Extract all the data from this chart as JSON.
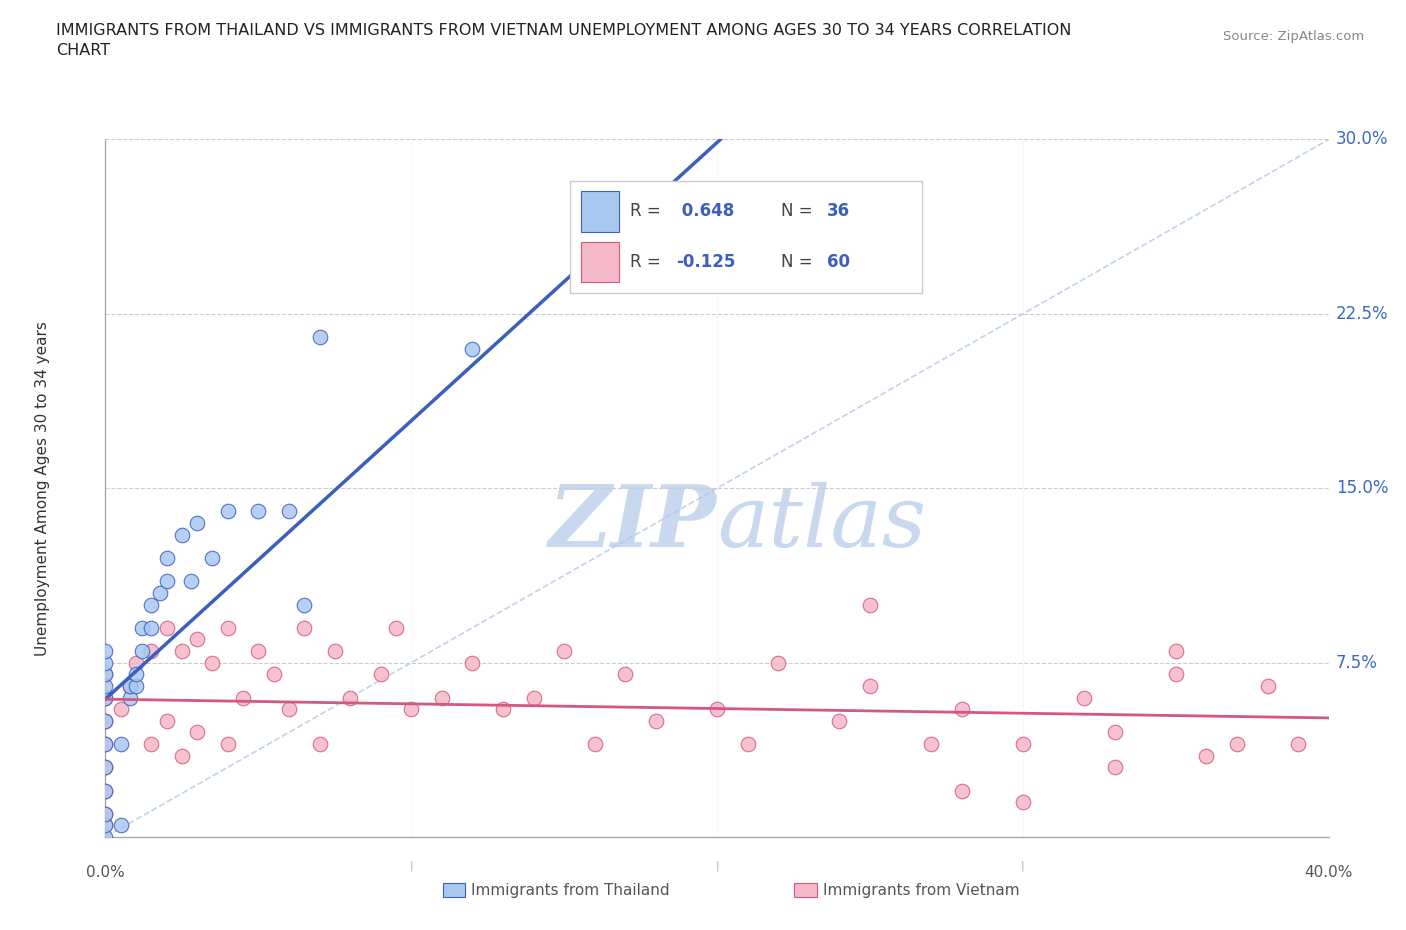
{
  "title": "IMMIGRANTS FROM THAILAND VS IMMIGRANTS FROM VIETNAM UNEMPLOYMENT AMONG AGES 30 TO 34 YEARS CORRELATION\nCHART",
  "source": "Source: ZipAtlas.com",
  "ylabel": "Unemployment Among Ages 30 to 34 years",
  "xlim": [
    0.0,
    0.4
  ],
  "ylim": [
    0.0,
    0.3
  ],
  "ytick_vals": [
    0.0,
    0.075,
    0.15,
    0.225,
    0.3
  ],
  "xtick_vals": [
    0.0,
    0.1,
    0.2,
    0.3,
    0.4
  ],
  "yticklabels_right": [
    "",
    "7.5%",
    "15.0%",
    "22.5%",
    "30.0%"
  ],
  "watermark": "ZIPatlas",
  "color_thailand": "#a8c8f0",
  "color_vietnam": "#f5b8c8",
  "color_trendline_thailand": "#3a5fbf",
  "color_trendline_vietnam": "#d45880",
  "color_diag": "#b0c8e8",
  "thailand_x": [
    0.0,
    0.0,
    0.0,
    0.0,
    0.0,
    0.0,
    0.0,
    0.0,
    0.0,
    0.0,
    0.0,
    0.0,
    0.005,
    0.005,
    0.008,
    0.008,
    0.01,
    0.01,
    0.012,
    0.012,
    0.015,
    0.015,
    0.018,
    0.02,
    0.02,
    0.025,
    0.028,
    0.03,
    0.035,
    0.04,
    0.05,
    0.06,
    0.065,
    0.07,
    0.12,
    0.22
  ],
  "thailand_y": [
    0.0,
    0.005,
    0.01,
    0.02,
    0.03,
    0.04,
    0.05,
    0.06,
    0.065,
    0.07,
    0.075,
    0.08,
    0.005,
    0.04,
    0.06,
    0.065,
    0.065,
    0.07,
    0.08,
    0.09,
    0.09,
    0.1,
    0.105,
    0.11,
    0.12,
    0.13,
    0.11,
    0.135,
    0.12,
    0.14,
    0.14,
    0.14,
    0.1,
    0.215,
    0.21,
    0.27
  ],
  "vietnam_x": [
    0.0,
    0.0,
    0.0,
    0.0,
    0.0,
    0.0,
    0.0,
    0.0,
    0.005,
    0.008,
    0.01,
    0.015,
    0.015,
    0.02,
    0.02,
    0.025,
    0.025,
    0.03,
    0.03,
    0.035,
    0.04,
    0.04,
    0.045,
    0.05,
    0.055,
    0.06,
    0.065,
    0.07,
    0.075,
    0.08,
    0.09,
    0.095,
    0.1,
    0.11,
    0.12,
    0.13,
    0.14,
    0.15,
    0.16,
    0.17,
    0.18,
    0.2,
    0.21,
    0.22,
    0.24,
    0.25,
    0.27,
    0.28,
    0.3,
    0.32,
    0.33,
    0.35,
    0.36,
    0.37,
    0.38,
    0.39,
    0.25,
    0.35,
    0.28,
    0.3,
    0.33
  ],
  "vietnam_y": [
    0.005,
    0.01,
    0.02,
    0.03,
    0.04,
    0.05,
    0.06,
    0.07,
    0.055,
    0.065,
    0.075,
    0.04,
    0.08,
    0.05,
    0.09,
    0.035,
    0.08,
    0.045,
    0.085,
    0.075,
    0.04,
    0.09,
    0.06,
    0.08,
    0.07,
    0.055,
    0.09,
    0.04,
    0.08,
    0.06,
    0.07,
    0.09,
    0.055,
    0.06,
    0.075,
    0.055,
    0.06,
    0.08,
    0.04,
    0.07,
    0.05,
    0.055,
    0.04,
    0.075,
    0.05,
    0.065,
    0.04,
    0.055,
    0.04,
    0.06,
    0.045,
    0.07,
    0.035,
    0.04,
    0.065,
    0.04,
    0.1,
    0.08,
    0.02,
    0.015,
    0.03
  ]
}
